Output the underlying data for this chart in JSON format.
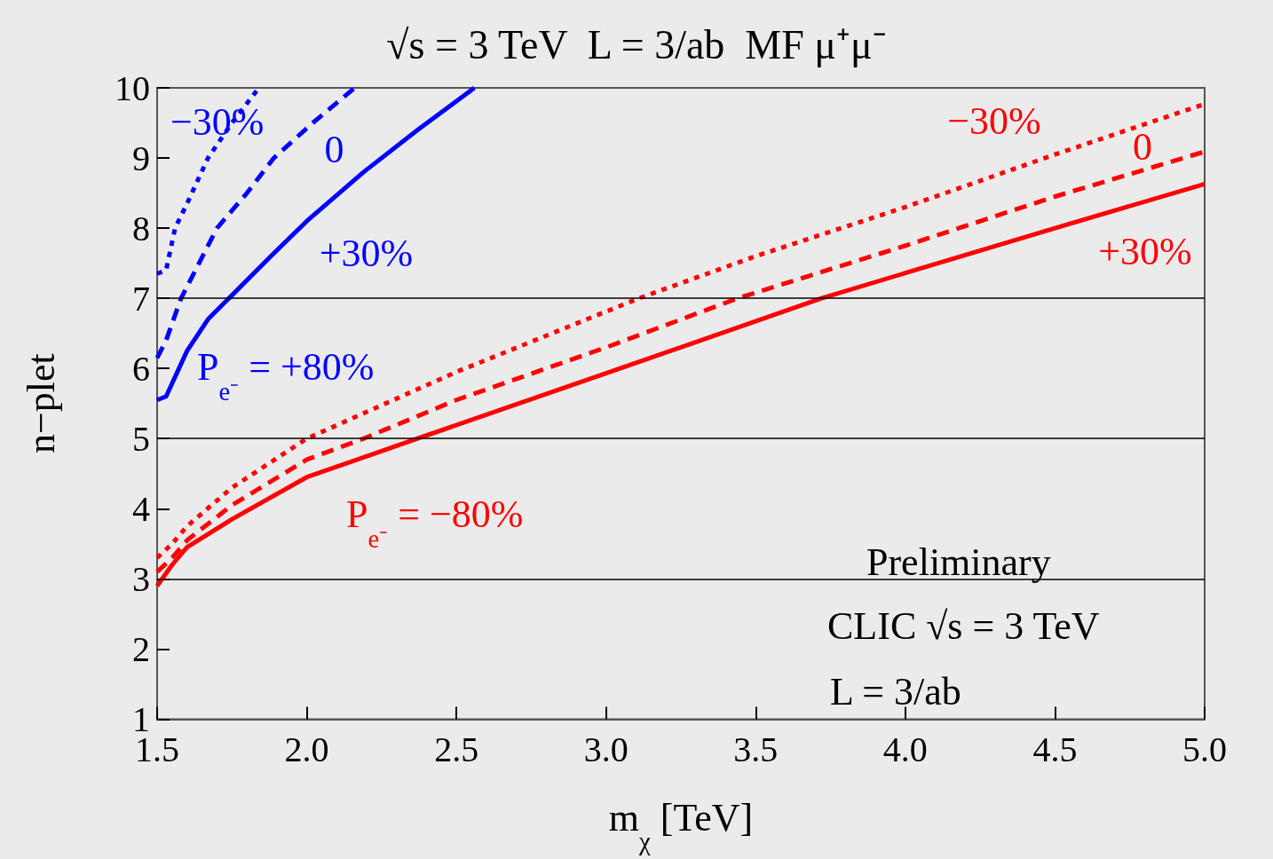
{
  "chart_data": {
    "type": "line",
    "title": "√s = 3 TeV  L = 3/ab  MF μ⁺μ⁻",
    "xlabel": "m$_{χ}$ [TeV]",
    "ylabel": "n−plet",
    "xlim": [
      1.5,
      5.0
    ],
    "ylim": [
      1,
      10
    ],
    "xticks": [
      1.5,
      {
        "value": 2,
        "label": "2.0"
      },
      2.5,
      {
        "value": 3,
        "label": "3.0"
      },
      3.5,
      {
        "value": 4,
        "label": "4.0"
      },
      4.5,
      {
        "value": 5,
        "label": "5.0"
      }
    ],
    "yticks": [
      1,
      2,
      3,
      4,
      5,
      6,
      7,
      8,
      9,
      10
    ],
    "grid": false,
    "legend": false,
    "marker": "none",
    "ref_lines": [
      {
        "axis": "y",
        "value": 3,
        "color": "#000000"
      },
      {
        "axis": "y",
        "value": 5,
        "color": "#000000"
      },
      {
        "axis": "y",
        "value": 7,
        "color": "#000000"
      }
    ],
    "series": [
      {
        "name": "−30%",
        "color": "#0000ff",
        "line_style": "dotted",
        "x": [
          1.5,
          1.53,
          1.56,
          1.6,
          1.67,
          1.75,
          1.84
        ],
        "values": [
          7.35,
          7.4,
          8.0,
          8.35,
          9.0,
          9.5,
          10
        ]
      },
      {
        "name": "0",
        "color": "#0000ff",
        "line_style": "dashed",
        "x": [
          1.5,
          1.53,
          1.58,
          1.64,
          1.7,
          1.8,
          1.89,
          2.02,
          2.16
        ],
        "values": [
          6.15,
          6.4,
          7.0,
          7.5,
          8.0,
          8.5,
          9.0,
          9.5,
          10
        ]
      },
      {
        "name": "+30%",
        "color": "#0000ff",
        "line_style": "solid",
        "x": [
          1.5,
          1.53,
          1.6,
          1.67,
          1.74,
          1.88,
          2.0,
          2.19,
          2.37,
          2.56
        ],
        "values": [
          5.55,
          5.6,
          6.25,
          6.7,
          7.0,
          7.6,
          8.1,
          8.8,
          9.4,
          10
        ]
      },
      {
        "name": "−30%",
        "color": "#ff0000",
        "line_style": "dotted",
        "x": [
          1.5,
          1.55,
          1.6,
          1.75,
          2.0,
          2.5,
          3.11,
          3.5,
          4.0,
          4.5,
          5.0
        ],
        "values": [
          3.3,
          3.5,
          3.75,
          4.3,
          5.0,
          5.95,
          7.0,
          7.6,
          8.3,
          9.05,
          9.77
        ]
      },
      {
        "name": "0",
        "color": "#ff0000",
        "line_style": "dashed",
        "x": [
          1.5,
          1.55,
          1.6,
          1.75,
          2.0,
          2.19,
          2.5,
          3.0,
          3.44,
          4.0,
          4.5,
          5.0
        ],
        "values": [
          3.1,
          3.3,
          3.55,
          4.05,
          4.7,
          5.0,
          5.55,
          6.3,
          7.0,
          7.75,
          8.45,
          9.09
        ]
      },
      {
        "name": "+30%",
        "color": "#ff0000",
        "line_style": "solid",
        "x": [
          1.5,
          1.55,
          1.6,
          1.75,
          2.0,
          2.37,
          3.0,
          3.72,
          4.0,
          4.5,
          5.0
        ],
        "values": [
          2.9,
          3.2,
          3.45,
          3.85,
          4.45,
          5.0,
          5.93,
          7.0,
          7.36,
          8.0,
          8.63
        ]
      }
    ],
    "annotations": [
      "P$_{e⁻}$ = +80%",
      "P$_{e⁻}$ = −80%",
      "Preliminary",
      "CLIC √s = 3 TeV",
      "L = 3/ab"
    ]
  }
}
